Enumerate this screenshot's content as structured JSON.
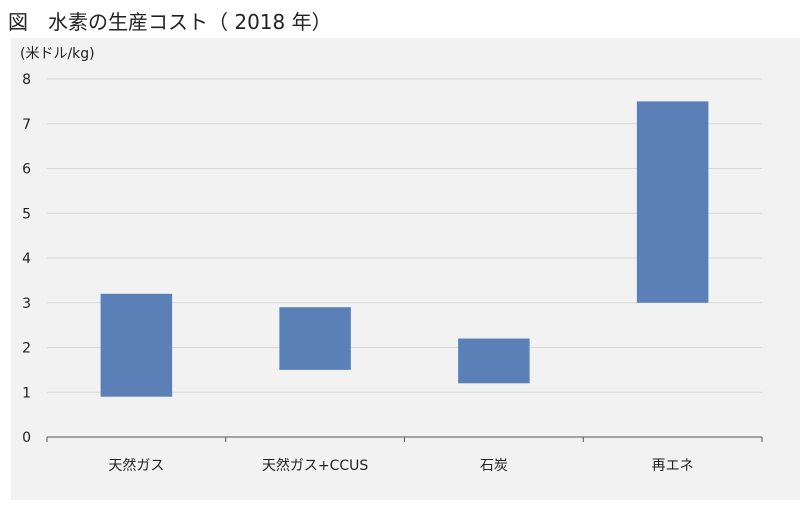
{
  "header": {
    "title": "図　水素の生産コスト（ 2018 年）"
  },
  "colors": {
    "bar": "#5b80b8",
    "panel": "#f2f2f2",
    "grid": "#d9d9d9",
    "axis": "#555555"
  },
  "chart_data": {
    "type": "bar",
    "variant": "floating-range",
    "unit_label": "(米ドル/kg)",
    "categories": [
      "天然ガス",
      "天然ガス+CCUS",
      "石炭",
      "再エネ"
    ],
    "ranges": [
      {
        "low": 0.9,
        "high": 3.2
      },
      {
        "low": 1.5,
        "high": 2.9
      },
      {
        "low": 1.2,
        "high": 2.2
      },
      {
        "low": 3.0,
        "high": 7.5
      }
    ],
    "ylim": [
      0,
      8
    ],
    "yticks": [
      "0",
      "1",
      "2",
      "3",
      "4",
      "5",
      "6",
      "7",
      "8"
    ],
    "grid": true,
    "legend": "none"
  }
}
